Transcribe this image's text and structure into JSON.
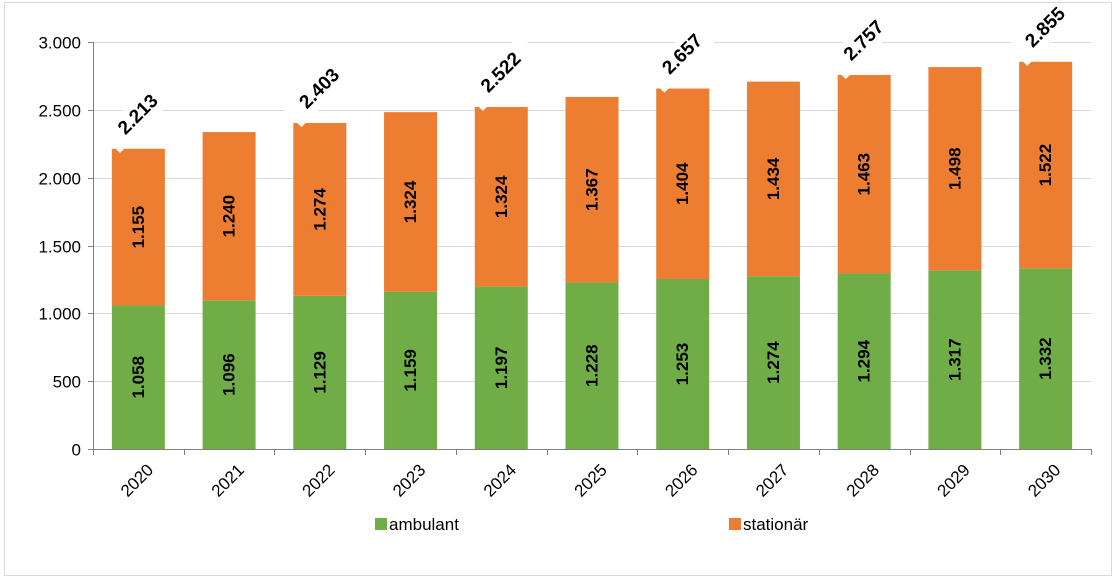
{
  "chart_data": {
    "type": "bar",
    "stacked": true,
    "categories": [
      "2020",
      "2021",
      "2022",
      "2023",
      "2024",
      "2025",
      "2026",
      "2027",
      "2028",
      "2029",
      "2030"
    ],
    "series": [
      {
        "name": "ambulant",
        "color": "#70ad47",
        "values": [
          1058,
          1096,
          1129,
          1159,
          1197,
          1228,
          1253,
          1274,
          1294,
          1317,
          1332
        ],
        "labels": [
          "1.058",
          "1.096",
          "1.129",
          "1.159",
          "1.197",
          "1.228",
          "1.253",
          "1.274",
          "1.294",
          "1.317",
          "1.332"
        ]
      },
      {
        "name": "stationär",
        "color": "#ed7d31",
        "values": [
          1155,
          1240,
          1274,
          1324,
          1324,
          1367,
          1404,
          1434,
          1463,
          1498,
          1522
        ],
        "labels": [
          "1.155",
          "1.240",
          "1.274",
          "1.324",
          "1.324",
          "1.367",
          "1.404",
          "1.434",
          "1.463",
          "1.498",
          "1.522"
        ]
      }
    ],
    "totals": [
      {
        "index": 0,
        "value": 2213,
        "label": "2.213"
      },
      {
        "index": 2,
        "value": 2403,
        "label": "2.403"
      },
      {
        "index": 4,
        "value": 2522,
        "label": "2.522"
      },
      {
        "index": 6,
        "value": 2657,
        "label": "2.657"
      },
      {
        "index": 8,
        "value": 2757,
        "label": "2.757"
      },
      {
        "index": 10,
        "value": 2855,
        "label": "2.855"
      }
    ],
    "ylim": [
      0,
      3000
    ],
    "yticks": [
      {
        "value": 0,
        "label": "0"
      },
      {
        "value": 500,
        "label": "500"
      },
      {
        "value": 1000,
        "label": "1.000"
      },
      {
        "value": 1500,
        "label": "1.500"
      },
      {
        "value": 2000,
        "label": "2.000"
      },
      {
        "value": 2500,
        "label": "2.500"
      },
      {
        "value": 3000,
        "label": "3.000"
      }
    ],
    "grid": true,
    "legend_position": "bottom",
    "title": "",
    "xlabel": "",
    "ylabel": ""
  }
}
